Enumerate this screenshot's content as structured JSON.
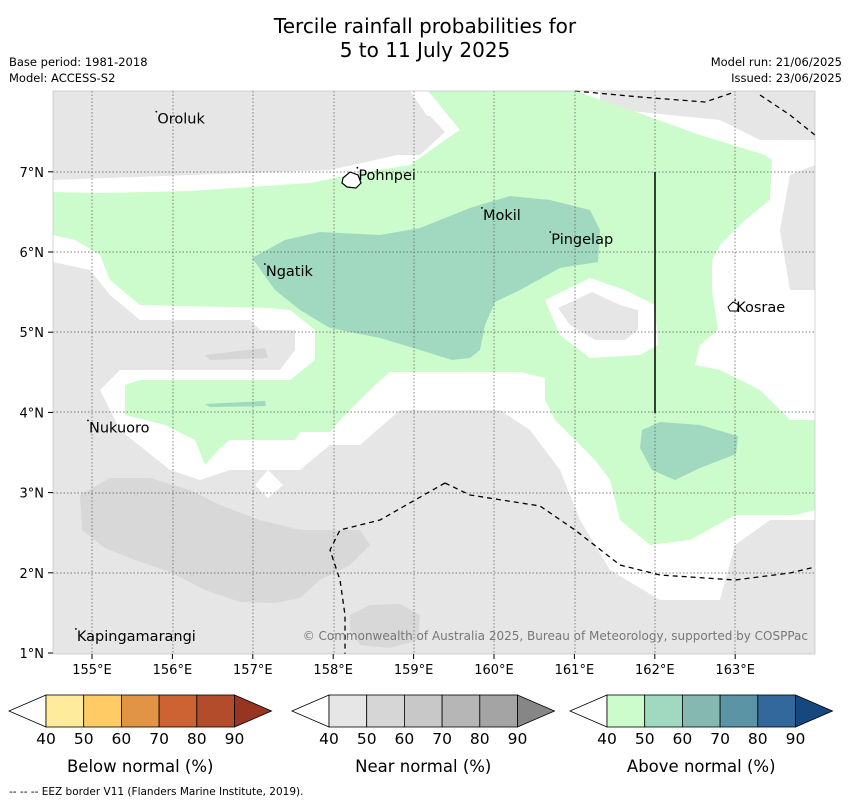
{
  "title": {
    "line1": "Tercile rainfall probabilities for",
    "line2": "5 to 11 July 2025"
  },
  "meta": {
    "base_period": "Base period: 1981-2018",
    "model": "Model: ACCESS-S2",
    "model_run": "Model run: 21/06/2025",
    "issued": "Issued: 23/06/2025"
  },
  "map": {
    "lon_ticks": [
      "155°E",
      "156°E",
      "157°E",
      "158°E",
      "159°E",
      "160°E",
      "161°E",
      "162°E",
      "163°E"
    ],
    "lat_ticks": [
      "1°N",
      "2°N",
      "3°N",
      "4°N",
      "5°N",
      "6°N",
      "7°N"
    ],
    "places": [
      {
        "name": "Oroluk",
        "lon": 155.8,
        "lat": 7.65
      },
      {
        "name": "Pohnpei",
        "lon": 158.3,
        "lat": 6.95
      },
      {
        "name": "Mokil",
        "lon": 159.85,
        "lat": 6.45
      },
      {
        "name": "Pingelap",
        "lon": 160.7,
        "lat": 6.15
      },
      {
        "name": "Ngatik",
        "lon": 157.15,
        "lat": 5.75
      },
      {
        "name": "Kosrae",
        "lon": 163.0,
        "lat": 5.3
      },
      {
        "name": "Nukuoro",
        "lon": 154.95,
        "lat": 3.8
      },
      {
        "name": "Kapingamarangi",
        "lon": 154.8,
        "lat": 1.2
      }
    ],
    "copyright": "© Commonwealth of Australia 2025, Bureau of Meteorology, supported by COSPPac"
  },
  "colorbars": [
    {
      "label": "Below normal (%)",
      "ticks": [
        "40",
        "50",
        "60",
        "70",
        "80",
        "90"
      ],
      "colors": [
        "#ffffff",
        "#ffeb9c",
        "#fecb65",
        "#e09444",
        "#cd6233",
        "#b34c2b",
        "#983520"
      ]
    },
    {
      "label": "Near normal (%)",
      "ticks": [
        "40",
        "50",
        "60",
        "70",
        "80",
        "90"
      ],
      "colors": [
        "#ffffff",
        "#e6e6e6",
        "#d6d6d6",
        "#c8c8c8",
        "#b6b6b6",
        "#a4a4a4",
        "#868686"
      ]
    },
    {
      "label": "Above normal (%)",
      "ticks": [
        "40",
        "50",
        "60",
        "70",
        "80",
        "90"
      ],
      "colors": [
        "#ffffff",
        "#ccfccb",
        "#a0d9c0",
        "#84b8b0",
        "#5b94a4",
        "#33689c",
        "#17477f"
      ]
    }
  ],
  "footer": "--  --  -- EEZ border V11 (Flanders Marine Institute, 2019)."
}
